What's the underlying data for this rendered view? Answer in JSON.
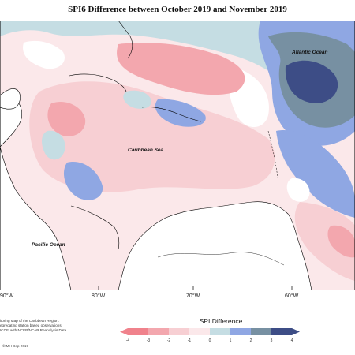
{
  "title": "SPI6 Difference between October 2019 and November 2019",
  "labels": {
    "atlantic": "Atlantic Ocean",
    "caribbean": "Caribbean Sea",
    "pacific": "Pacific Ocean"
  },
  "longitude_ticks": [
    "90°W",
    "80°W",
    "70°W",
    "60°W"
  ],
  "footer_lines": [
    "itoring Map of the Caribbean Region.",
    "egregating station based observations,",
    "ICOF, with NCEP/NCAR Reanalysis Data."
  ],
  "copyright": "©IMH Dep 2019",
  "legend": {
    "title": "SPI Difference",
    "ticks": [
      "-4",
      "-3",
      "-2",
      "-1",
      "0",
      "1",
      "2",
      "3",
      "4"
    ],
    "colors": [
      "#f0828c",
      "#f3a7ae",
      "#f7cfd3",
      "#fbe8ea",
      "#ffffff",
      "#c5dde3",
      "#8fa7e3",
      "#7790a2",
      "#3d4d86"
    ]
  },
  "colors": {
    "neg4": "#f0828c",
    "neg3": "#f3a7ae",
    "neg2": "#f7cfd3",
    "neg1": "#fbe8ea",
    "zero": "#ffffff",
    "pos1": "#c5dde3",
    "pos2": "#8fa7e3",
    "pos3": "#7790a2",
    "pos4": "#3d4d86"
  }
}
